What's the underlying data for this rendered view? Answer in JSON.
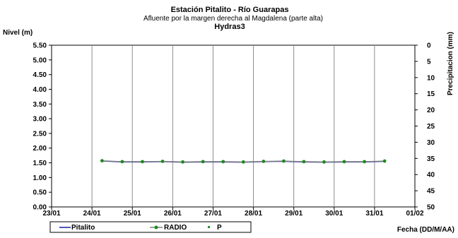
{
  "chart_data": {
    "type": "line",
    "title": "Estación Pitalito  - Río Guarapas",
    "subtitle": "Afluente por la margen derecha al Magdalena (parte alta)",
    "subtitle2": "Hydras3",
    "ylabel": "Nivel (m)",
    "y2label": "Precipitacion (mm)",
    "xlabel": "Fecha (DD/M/AA)",
    "x_ticks": [
      "23/01",
      "24/01",
      "25/01",
      "26/01",
      "27/01",
      "28/01",
      "29/01",
      "30/01",
      "31/01",
      "01/02"
    ],
    "y_ticks": [
      "0.00",
      "0.50",
      "1.00",
      "1.50",
      "2.00",
      "2.50",
      "3.00",
      "3.50",
      "4.00",
      "4.50",
      "5.00",
      "5.50"
    ],
    "y2_ticks": [
      "0",
      "5",
      "10",
      "15",
      "20",
      "25",
      "30",
      "35",
      "40",
      "45",
      "50"
    ],
    "ylim": [
      0,
      5.5
    ],
    "y2lim": [
      0,
      50
    ],
    "y2_inverted": true,
    "xlim": [
      0,
      9
    ],
    "grid": "vertical",
    "legend_position": "bottom-left",
    "legend": [
      "Pitalito",
      "RADIO",
      "P"
    ],
    "colors": {
      "Pitalito": "#1a1aa0",
      "RADIO": "#1f8a1f",
      "RADIO_line": "#808080",
      "P": "#2e8b2e"
    },
    "series": [
      {
        "name": "Pitalito",
        "x": [
          1.25,
          1.75,
          2.25,
          2.75,
          3.25,
          3.75,
          4.25,
          4.75,
          5.25,
          5.75,
          6.25,
          6.75,
          7.25,
          7.75,
          8.25
        ],
        "values": [
          1.56,
          1.53,
          1.53,
          1.54,
          1.52,
          1.53,
          1.53,
          1.52,
          1.54,
          1.55,
          1.53,
          1.52,
          1.53,
          1.53,
          1.55
        ]
      },
      {
        "name": "RADIO",
        "x": [
          1.25,
          1.75,
          2.25,
          2.75,
          3.25,
          3.75,
          4.25,
          4.75,
          5.25,
          5.75,
          6.25,
          6.75,
          7.25,
          7.75,
          8.25
        ],
        "values": [
          1.57,
          1.54,
          1.54,
          1.55,
          1.53,
          1.54,
          1.54,
          1.53,
          1.55,
          1.56,
          1.54,
          1.53,
          1.54,
          1.54,
          1.56
        ]
      }
    ]
  }
}
